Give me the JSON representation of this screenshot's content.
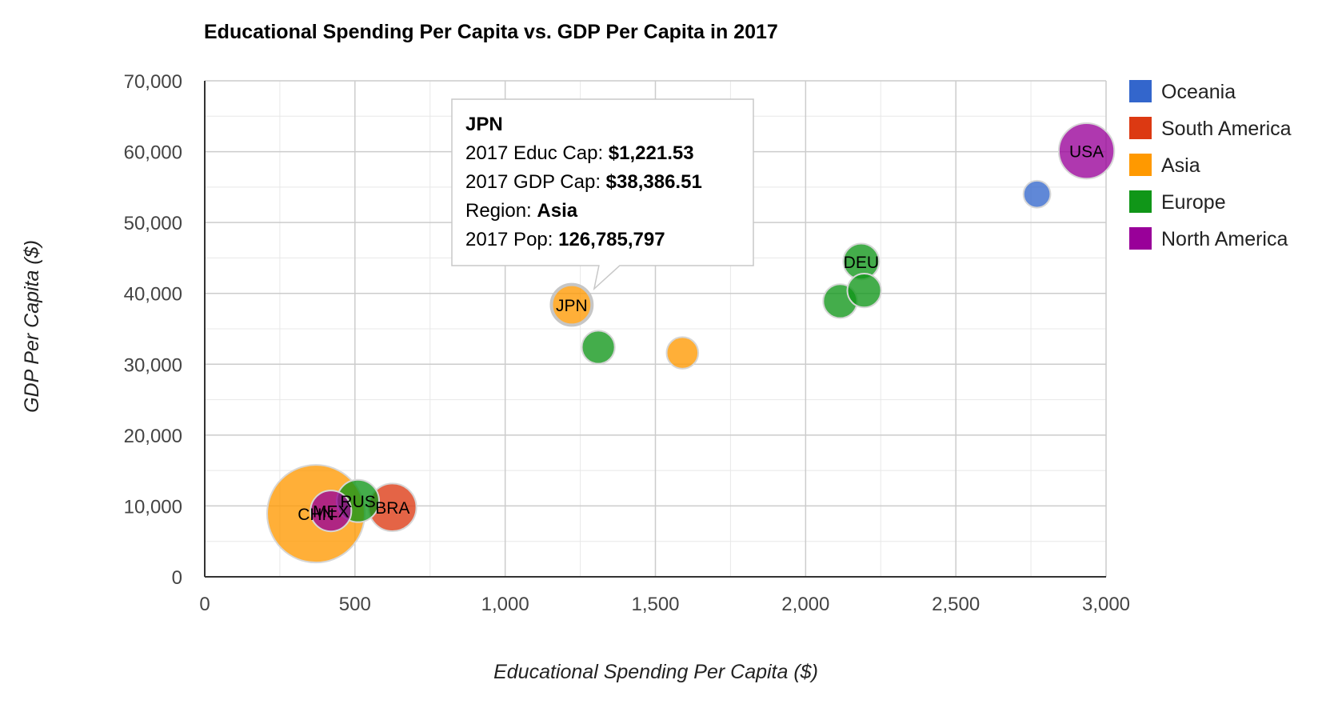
{
  "chart_data": {
    "type": "scatter",
    "subtype": "bubble",
    "title": "Educational Spending Per Capita vs. GDP Per Capita in 2017",
    "xlabel": "Educational Spending Per Capita ($)",
    "ylabel": "GDP Per Capita ($)",
    "xlim": [
      0,
      3000
    ],
    "ylim": [
      0,
      70000
    ],
    "x_ticks": [
      0,
      500,
      1000,
      1500,
      2000,
      2500,
      3000
    ],
    "x_tick_labels": [
      "0",
      "500",
      "1,000",
      "1,500",
      "2,000",
      "2,500",
      "3,000"
    ],
    "y_ticks": [
      0,
      10000,
      20000,
      30000,
      40000,
      50000,
      60000,
      70000
    ],
    "y_tick_labels": [
      "0",
      "10,000",
      "20,000",
      "30,000",
      "40,000",
      "50,000",
      "60,000",
      "70,000"
    ],
    "grid": true,
    "legend_position": "right",
    "series": [
      {
        "name": "Oceania",
        "color": "#3366cc"
      },
      {
        "name": "South America",
        "color": "#dc3912"
      },
      {
        "name": "Asia",
        "color": "#ff9900"
      },
      {
        "name": "Europe",
        "color": "#109618"
      },
      {
        "name": "North America",
        "color": "#990099"
      }
    ],
    "points": [
      {
        "label": "CHN",
        "display_label": "CHN",
        "region": "Asia",
        "x": 370,
        "y": 8900,
        "size": 1386
      },
      {
        "label": "RUS",
        "display_label": "RUS",
        "region": "Europe",
        "x": 510,
        "y": 10700,
        "size": 144
      },
      {
        "label": "MEX",
        "display_label": "MEX",
        "region": "North America",
        "x": 420,
        "y": 9300,
        "size": 129
      },
      {
        "label": "BRA",
        "display_label": "BRA",
        "region": "South America",
        "x": 625,
        "y": 9800,
        "size": 209
      },
      {
        "label": "JPN",
        "display_label": "JPN",
        "region": "Asia",
        "x": 1221.53,
        "y": 38386.51,
        "size": 126.785797
      },
      {
        "label": "",
        "display_label": "",
        "region": "Europe",
        "x": 1310,
        "y": 32400,
        "size": 60
      },
      {
        "label": "",
        "display_label": "",
        "region": "Asia",
        "x": 1590,
        "y": 31600,
        "size": 51
      },
      {
        "label": "",
        "display_label": "",
        "region": "Europe",
        "x": 2115,
        "y": 38900,
        "size": 67
      },
      {
        "label": "",
        "display_label": "",
        "region": "Europe",
        "x": 2195,
        "y": 40400,
        "size": 66
      },
      {
        "label": "DEU",
        "display_label": "DEU",
        "region": "Europe",
        "x": 2185,
        "y": 44500,
        "size": 82
      },
      {
        "label": "",
        "display_label": "",
        "region": "Oceania",
        "x": 2770,
        "y": 54000,
        "size": 25
      },
      {
        "label": "USA",
        "display_label": "USA",
        "region": "North America",
        "x": 2935,
        "y": 60100,
        "size": 325
      }
    ],
    "tooltip": {
      "country": "JPN",
      "rows": [
        {
          "label": "2017 Educ Cap: ",
          "value": "$1,221.53"
        },
        {
          "label": "2017 GDP Cap: ",
          "value": "$38,386.51"
        },
        {
          "label": "Region: ",
          "value": "Asia"
        },
        {
          "label": "2017 Pop: ",
          "value": "126,785,797"
        }
      ]
    }
  }
}
